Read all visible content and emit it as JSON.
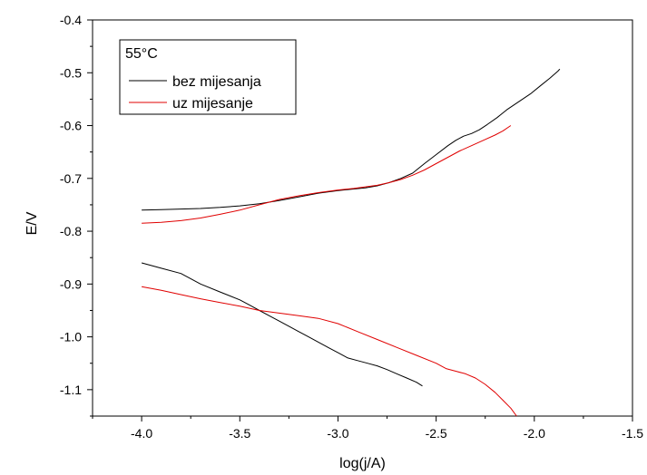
{
  "chart_data": {
    "type": "line",
    "title": "",
    "xlabel": "log(j/A)",
    "ylabel": "E/V",
    "xlim": [
      -4.25,
      -1.5
    ],
    "ylim": [
      -1.15,
      -0.4
    ],
    "x_ticks": [
      -4.0,
      -3.5,
      -3.0,
      -2.5,
      -2.0,
      -1.5
    ],
    "x_tick_labels": [
      "-4.0",
      "-3.5",
      "-3.0",
      "-2.5",
      "-2.0",
      "-1.5"
    ],
    "y_ticks": [
      -0.4,
      -0.5,
      -0.6,
      -0.7,
      -0.8,
      -0.9,
      -1.0,
      -1.1
    ],
    "y_tick_labels": [
      "-0.4",
      "-0.5",
      "-0.6",
      "-0.7",
      "-0.8",
      "-0.9",
      "-1.0",
      "-1.1"
    ],
    "grid": false,
    "legend": {
      "title": "55°C",
      "position": "top-left",
      "entries": [
        "bez mijesanja",
        "uz mijesanje"
      ]
    },
    "series": [
      {
        "name": "bez mijesanja",
        "color": "#000000",
        "segments": [
          {
            "branch": "anodic",
            "x": [
              -1.87,
              -1.88,
              -1.92,
              -1.97,
              -2.02,
              -2.08,
              -2.14,
              -2.19,
              -2.24,
              -2.28,
              -2.32,
              -2.36,
              -2.4,
              -2.44,
              -2.5,
              -2.56,
              -2.62,
              -2.68,
              -2.74,
              -2.8,
              -2.86,
              -2.92,
              -3.0,
              -3.1,
              -3.2,
              -3.3,
              -3.4,
              -3.5,
              -3.6,
              -3.7,
              -3.8,
              -3.9,
              -4.0
            ],
            "y": [
              -0.493,
              -0.497,
              -0.51,
              -0.525,
              -0.54,
              -0.555,
              -0.57,
              -0.585,
              -0.598,
              -0.608,
              -0.615,
              -0.62,
              -0.628,
              -0.638,
              -0.655,
              -0.672,
              -0.69,
              -0.7,
              -0.708,
              -0.714,
              -0.718,
              -0.72,
              -0.723,
              -0.728,
              -0.735,
              -0.742,
              -0.748,
              -0.752,
              -0.755,
              -0.757,
              -0.758,
              -0.759,
              -0.76
            ]
          },
          {
            "branch": "cathodic",
            "x": [
              -4.0,
              -3.9,
              -3.8,
              -3.7,
              -3.6,
              -3.5,
              -3.45,
              -3.4,
              -3.35,
              -3.3,
              -3.25,
              -3.2,
              -3.15,
              -3.1,
              -3.05,
              -3.0,
              -2.95,
              -2.9,
              -2.85,
              -2.8,
              -2.75,
              -2.7,
              -2.65,
              -2.6,
              -2.57
            ],
            "y": [
              -0.86,
              -0.87,
              -0.88,
              -0.9,
              -0.915,
              -0.93,
              -0.94,
              -0.95,
              -0.96,
              -0.97,
              -0.98,
              -0.99,
              -1.0,
              -1.01,
              -1.02,
              -1.03,
              -1.04,
              -1.045,
              -1.05,
              -1.055,
              -1.062,
              -1.07,
              -1.078,
              -1.086,
              -1.093
            ]
          }
        ]
      },
      {
        "name": "uz mijesanje",
        "color": "#e00000",
        "segments": [
          {
            "branch": "anodic",
            "x": [
              -2.12,
              -2.16,
              -2.2,
              -2.26,
              -2.32,
              -2.38,
              -2.44,
              -2.5,
              -2.56,
              -2.62,
              -2.68,
              -2.74,
              -2.8,
              -2.86,
              -2.92,
              -3.0,
              -3.1,
              -3.2,
              -3.3,
              -3.4,
              -3.5,
              -3.6,
              -3.7,
              -3.8,
              -3.9,
              -4.0
            ],
            "y": [
              -0.6,
              -0.61,
              -0.618,
              -0.628,
              -0.638,
              -0.648,
              -0.66,
              -0.672,
              -0.684,
              -0.694,
              -0.702,
              -0.708,
              -0.713,
              -0.716,
              -0.719,
              -0.722,
              -0.727,
              -0.733,
              -0.74,
              -0.75,
              -0.76,
              -0.768,
              -0.775,
              -0.78,
              -0.783,
              -0.785
            ]
          },
          {
            "branch": "cathodic",
            "x": [
              -4.0,
              -3.9,
              -3.8,
              -3.7,
              -3.6,
              -3.5,
              -3.4,
              -3.3,
              -3.2,
              -3.1,
              -3.0,
              -2.9,
              -2.8,
              -2.7,
              -2.6,
              -2.5,
              -2.45,
              -2.4,
              -2.35,
              -2.3,
              -2.25,
              -2.2,
              -2.16,
              -2.12,
              -2.09
            ],
            "y": [
              -0.905,
              -0.912,
              -0.92,
              -0.928,
              -0.935,
              -0.942,
              -0.95,
              -0.955,
              -0.96,
              -0.965,
              -0.975,
              -0.99,
              -1.005,
              -1.02,
              -1.035,
              -1.05,
              -1.06,
              -1.065,
              -1.07,
              -1.078,
              -1.09,
              -1.105,
              -1.12,
              -1.135,
              -1.15
            ]
          }
        ]
      }
    ]
  }
}
